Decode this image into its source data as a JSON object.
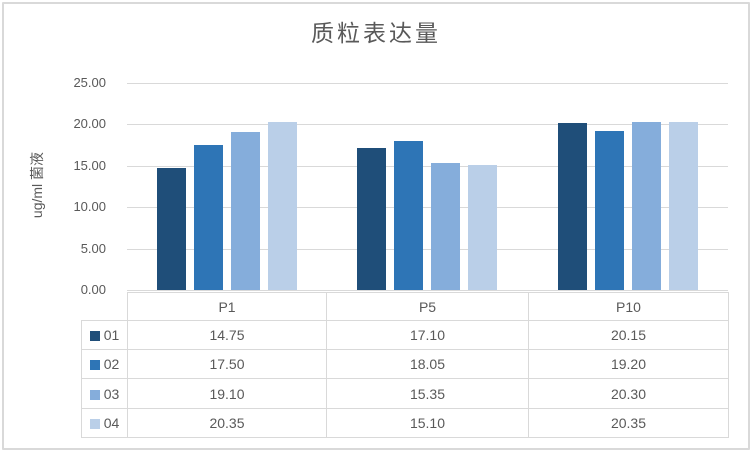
{
  "chart_data": {
    "type": "bar",
    "title": "质粒表达量",
    "xlabel": "",
    "ylabel": "ug/ml 菌液",
    "categories": [
      "P1",
      "P5",
      "P10"
    ],
    "series": [
      {
        "name": "01",
        "color": "#1F4E79",
        "values": [
          14.75,
          17.1,
          20.15
        ]
      },
      {
        "name": "02",
        "color": "#2E75B6",
        "values": [
          17.5,
          18.05,
          19.2
        ]
      },
      {
        "name": "03",
        "color": "#85ADDB",
        "values": [
          19.1,
          15.35,
          20.3
        ]
      },
      {
        "name": "04",
        "color": "#BACFE8",
        "values": [
          20.35,
          15.1,
          20.35
        ]
      }
    ],
    "ylim": [
      0,
      25
    ],
    "ytick_step": 5,
    "ytick_labels": [
      "0.00",
      "5.00",
      "10.00",
      "15.00",
      "20.00",
      "25.00"
    ],
    "value_decimals": 2,
    "grid": true,
    "legend_position": "data-table-left",
    "colors": {
      "text": "#595959",
      "grid": "#D9D9D9",
      "border": "#D9D9D9",
      "background": "#FFFFFF"
    }
  }
}
